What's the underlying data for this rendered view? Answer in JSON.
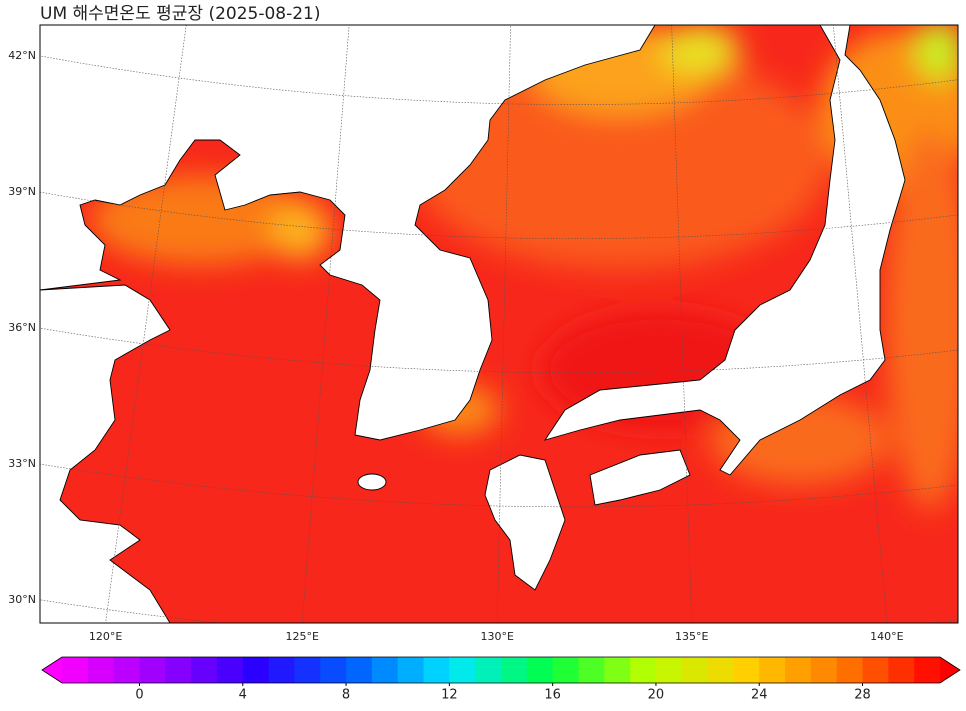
{
  "title": "UM 해수면온도 평균장 (2025-08-21)",
  "map": {
    "lat_ticks": [
      {
        "value": 42,
        "label": "42°N"
      },
      {
        "value": 39,
        "label": "39°N"
      },
      {
        "value": 36,
        "label": "36°N"
      },
      {
        "value": 33,
        "label": "33°N"
      },
      {
        "value": 30,
        "label": "30°N"
      }
    ],
    "lon_ticks": [
      {
        "value": 120,
        "label": "120°E"
      },
      {
        "value": 125,
        "label": "125°E"
      },
      {
        "value": 130,
        "label": "130°E"
      },
      {
        "value": 135,
        "label": "135°E"
      },
      {
        "value": 140,
        "label": "140°E"
      }
    ]
  },
  "colorbar": {
    "range": [
      -3,
      31
    ],
    "ticks": [
      0,
      4,
      8,
      12,
      16,
      20,
      24,
      28
    ],
    "colors": [
      "#ff00ff",
      "#9a00ff",
      "#2a00ff",
      "#0060ff",
      "#00e8ff",
      "#00ff40",
      "#b8ff00",
      "#ffd000",
      "#ff7800",
      "#ff0000"
    ]
  }
}
